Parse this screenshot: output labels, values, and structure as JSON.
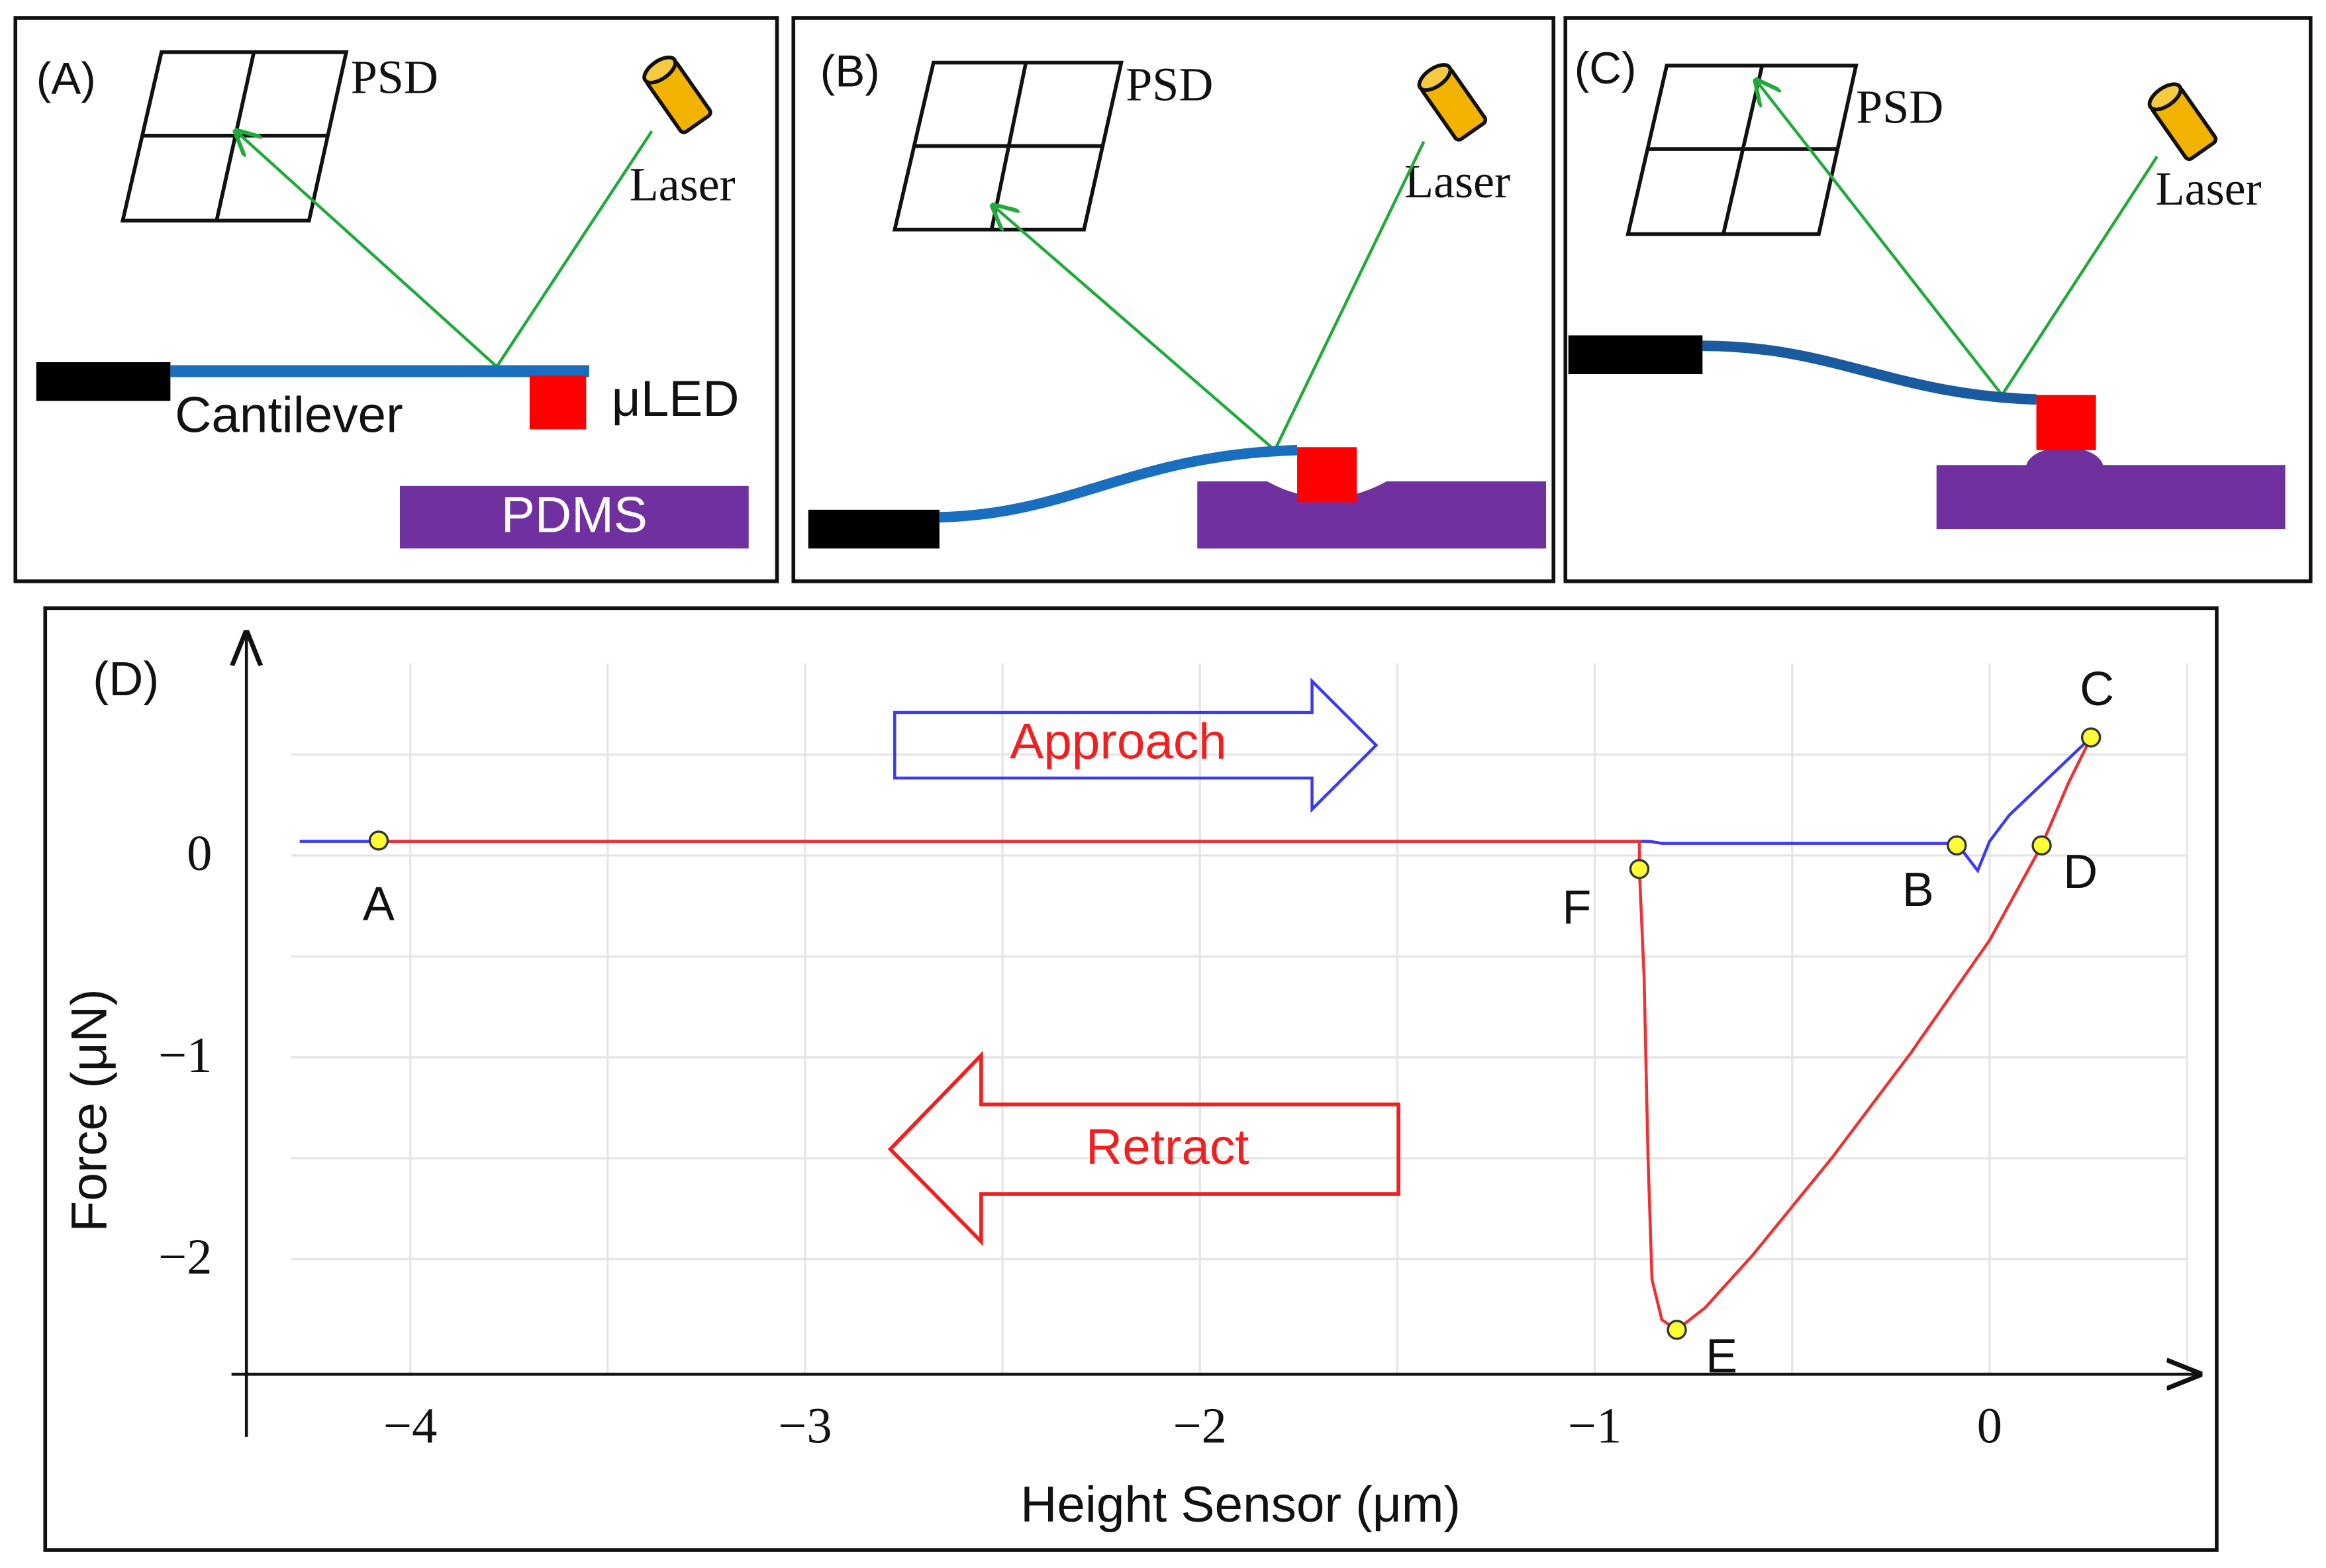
{
  "panels": [
    {
      "label": "(A)",
      "psd": "PSD",
      "laser": "Laser",
      "cantilever": "Cantilever",
      "led": "μLED",
      "substrate": "PDMS"
    },
    {
      "label": "(B)",
      "psd": "PSD",
      "laser": "Laser"
    },
    {
      "label": "(C)",
      "psd": "PSD",
      "laser": "Laser"
    }
  ],
  "chart_data": {
    "type": "line",
    "label": "(D)",
    "xlabel": "Height Sensor (μm)",
    "ylabel": "Force (μN)",
    "xlim": [
      -4.415,
      0.53
    ],
    "ylim": [
      -2.57,
      1.1
    ],
    "xticks": [
      {
        "value": -4,
        "label": "−4"
      },
      {
        "value": -3,
        "label": "−3"
      },
      {
        "value": -2,
        "label": "−2"
      },
      {
        "value": -1,
        "label": "−1"
      },
      0
    ],
    "yticks": [
      0,
      {
        "value": -1,
        "label": "−1"
      },
      {
        "value": -2,
        "label": "−2"
      }
    ],
    "xgrid": [
      -4,
      -3.5,
      -3,
      -2.5,
      -2,
      -1.5,
      -1,
      -0.5,
      0,
      0.5
    ],
    "ygrid": [
      0.5,
      0,
      -0.5,
      -1,
      -1.5,
      -2
    ],
    "series": [
      {
        "name": "Approach",
        "color": "#3b3bf0",
        "x": [
          -4.28,
          -0.86,
          -0.83,
          -0.083,
          -0.03,
          0.0,
          0.05,
          0.257
        ],
        "values": [
          0.07,
          0.07,
          0.06,
          0.06,
          -0.075,
          0.07,
          0.2,
          0.585
        ]
      },
      {
        "name": "Retract",
        "color": "#f03030",
        "x": [
          0.257,
          0.2,
          0.132,
          0.0,
          -0.2,
          -0.4,
          -0.6,
          -0.72,
          -0.792,
          -0.83,
          -0.855,
          -0.865,
          -0.875,
          -0.887,
          -0.887,
          -4.08
        ],
        "values": [
          0.585,
          0.36,
          0.05,
          -0.42,
          -0.98,
          -1.5,
          -1.98,
          -2.24,
          -2.35,
          -2.3,
          -2.1,
          -1.5,
          -0.6,
          -0.067,
          0.07,
          0.07
        ]
      }
    ],
    "points": [
      {
        "label": "A",
        "x": -4.08,
        "y": 0.074
      },
      {
        "label": "B",
        "x": -0.083,
        "y": 0.05
      },
      {
        "label": "C",
        "x": 0.257,
        "y": 0.585
      },
      {
        "label": "D",
        "x": 0.132,
        "y": 0.05
      },
      {
        "label": "E",
        "x": -0.792,
        "y": -2.35
      },
      {
        "label": "F",
        "x": -0.887,
        "y": -0.067
      }
    ]
  }
}
